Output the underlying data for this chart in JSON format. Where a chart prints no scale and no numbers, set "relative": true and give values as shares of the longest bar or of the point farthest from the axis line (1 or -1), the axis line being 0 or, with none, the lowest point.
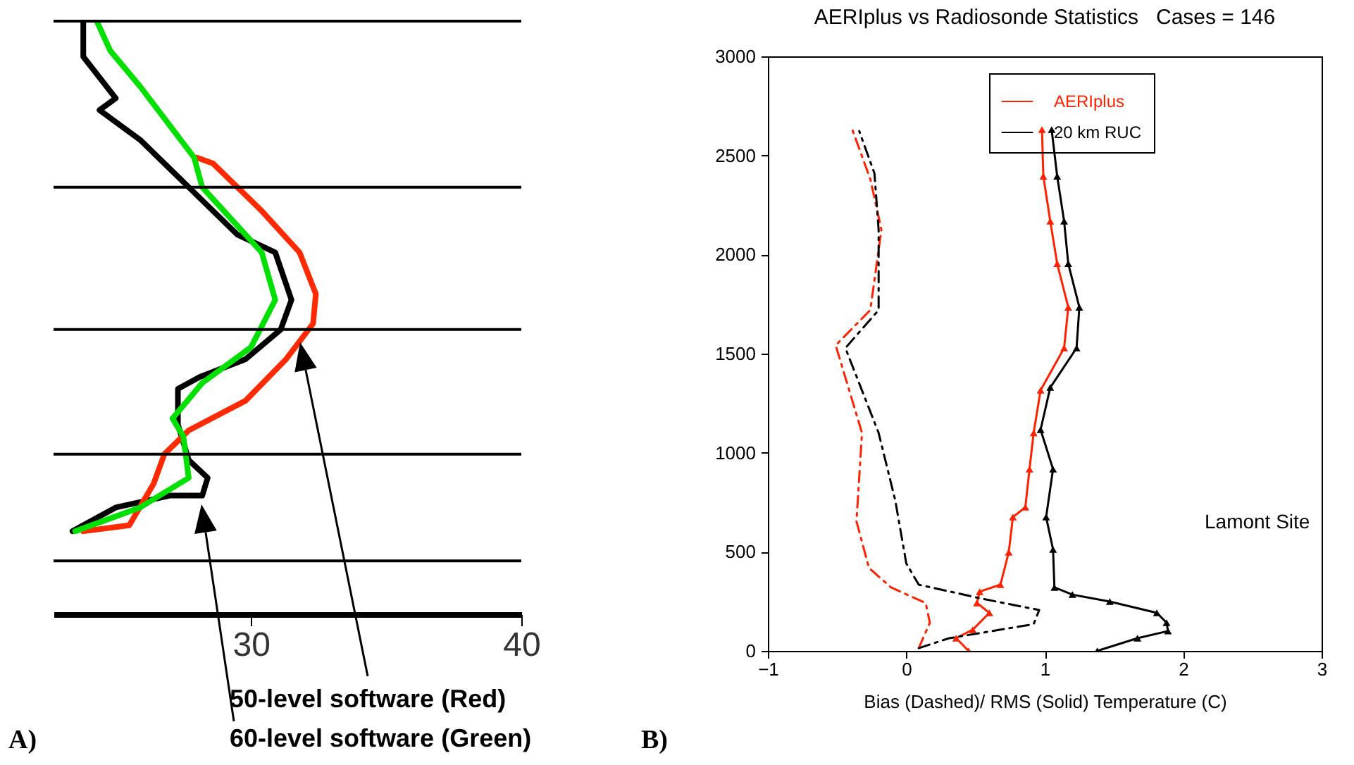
{
  "chart_data": [
    {
      "type": "line",
      "xlim": [
        22.7,
        40
      ],
      "xticks": [
        30,
        40
      ],
      "relative": true,
      "series": [
        {
          "color": "#000000",
          "x": [
            23.4,
            25.0,
            27.0,
            28.2,
            28.4,
            27.7,
            27.3,
            27.3,
            28.1,
            29.8,
            31.1,
            31.5,
            30.9,
            29.5,
            27.7,
            25.9,
            24.4,
            25.0,
            23.8,
            23.8
          ],
          "values": [
            0.14,
            0.18,
            0.2,
            0.2,
            0.23,
            0.26,
            0.32,
            0.38,
            0.4,
            0.43,
            0.48,
            0.53,
            0.61,
            0.64,
            0.72,
            0.8,
            0.85,
            0.87,
            0.94,
            1
          ]
        },
        {
          "color": "#ff2a00",
          "x": [
            23.8,
            25.5,
            26.4,
            26.8,
            27.7,
            29.8,
            31.3,
            32.3,
            32.4,
            31.8,
            30.4,
            28.6,
            28.0
          ],
          "values": [
            0.14,
            0.15,
            0.22,
            0.27,
            0.31,
            0.36,
            0.43,
            0.49,
            0.54,
            0.61,
            0.68,
            0.76,
            0.77
          ]
        },
        {
          "color": "#00e000",
          "x": [
            23.5,
            25.9,
            27.7,
            27.5,
            27.1,
            28.2,
            30.0,
            30.9,
            30.4,
            28.2,
            27.9,
            25.9,
            24.8,
            24.3
          ],
          "values": [
            0.14,
            0.18,
            0.23,
            0.3,
            0.33,
            0.39,
            0.45,
            0.53,
            0.61,
            0.72,
            0.77,
            0.89,
            0.95,
            1
          ]
        }
      ],
      "ref_lines": [
        {
          "axis": "y",
          "value": 0.09,
          "color": "#000000"
        },
        {
          "axis": "y",
          "value": 0.27,
          "color": "#000000"
        },
        {
          "axis": "y",
          "value": 0.48,
          "color": "#000000"
        },
        {
          "axis": "y",
          "value": 0.72,
          "color": "#000000"
        },
        {
          "axis": "y",
          "value": 1,
          "color": "#000000"
        }
      ],
      "annotations": [
        "A)",
        "50-level software (Red)",
        "60-level software (Green)"
      ]
    },
    {
      "type": "line",
      "title": "AERIplus vs Radiosonde Statistics   Cases = 146",
      "xlabel": "Bias (Dashed)/ RMS (Solid) Temperature (C)",
      "xlim": [
        -1,
        3
      ],
      "xticks": [
        -1,
        0,
        1,
        2,
        3
      ],
      "ylim": [
        0,
        3000
      ],
      "yticks": [
        0,
        500,
        1000,
        1500,
        2000,
        2500,
        3000
      ],
      "legend": "top right",
      "series": [
        {
          "name": "AERIplus",
          "color": "#ff2200",
          "marker": "triangle",
          "x": [
            0.45,
            0.36,
            0.48,
            0.6,
            0.51,
            0.53,
            0.68,
            0.74,
            0.77,
            0.86,
            0.89,
            0.92,
            0.97,
            1.14,
            1.17,
            1.09,
            1.04,
            0.99,
            0.98
          ],
          "values": [
            0,
            64,
            107,
            192,
            242,
            299,
            334,
            498,
            675,
            725,
            917,
            1100,
            1315,
            1528,
            1734,
            1954,
            2168,
            2395,
            2630
          ]
        },
        {
          "name": "20 km RUC",
          "color": "#000000",
          "marker": "triangle",
          "x": [
            1.38,
            1.67,
            1.89,
            1.88,
            1.81,
            1.47,
            1.2,
            1.07,
            1.06,
            1.01,
            1.06,
            0.97,
            1.04,
            1.23,
            1.25,
            1.17,
            1.14,
            1.09,
            1.05
          ],
          "values": [
            0,
            64,
            100,
            142,
            192,
            249,
            284,
            320,
            512,
            675,
            917,
            1116,
            1329,
            1528,
            1734,
            1954,
            2168,
            2395,
            2630
          ]
        },
        {
          "color": "#ff2200",
          "line_style": "dashed",
          "x": [
            0.09,
            0.17,
            0.14,
            -0.11,
            -0.27,
            -0.36,
            -0.32,
            -0.51,
            -0.26,
            -0.18,
            -0.26,
            -0.39
          ],
          "values": [
            14,
            142,
            242,
            320,
            419,
            654,
            1100,
            1542,
            1720,
            2125,
            2381,
            2630
          ]
        },
        {
          "color": "#000000",
          "line_style": "dashed",
          "x": [
            0.09,
            0.31,
            0.92,
            0.96,
            0.55,
            0.09,
            0.0,
            -0.08,
            -0.2,
            -0.44,
            -0.2,
            -0.2,
            -0.23,
            -0.34
          ],
          "values": [
            14,
            64,
            135,
            206,
            263,
            334,
            441,
            760,
            1100,
            1528,
            1720,
            2125,
            2409,
            2623
          ]
        }
      ],
      "annotations": [
        "B)",
        "Lamont Site"
      ]
    }
  ]
}
